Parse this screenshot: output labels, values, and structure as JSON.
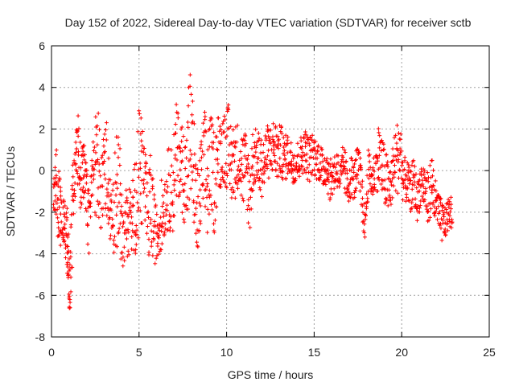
{
  "chart_data": {
    "type": "scatter",
    "title": "Day 152 of 2022, Sidereal Day-to-day VTEC variation (SDTVAR) for receiver sctb",
    "xlabel": "GPS time / hours",
    "ylabel": "SDTVAR / TECUs",
    "xlim": [
      0,
      25
    ],
    "ylim": [
      -8,
      6
    ],
    "x_ticks": [
      "0",
      "5",
      "10",
      "15",
      "20",
      "25"
    ],
    "y_ticks": [
      "-8",
      "-6",
      "-4",
      "-2",
      "0",
      "2",
      "4",
      "6"
    ],
    "grid": true,
    "marker": "+",
    "color": "#ff0000",
    "series": [
      {
        "name": "SDTVAR",
        "profile": [
          [
            0.1,
            -1.0,
            0.8
          ],
          [
            0.25,
            -0.5,
            1.8
          ],
          [
            0.4,
            -1.8,
            2.2
          ],
          [
            0.55,
            -2.5,
            1.5
          ],
          [
            0.7,
            -2.2,
            1.2
          ],
          [
            0.85,
            -3.0,
            1.5
          ],
          [
            0.95,
            -4.5,
            1.6
          ],
          [
            1.05,
            -5.5,
            1.4
          ],
          [
            1.2,
            -2.5,
            2.2
          ],
          [
            1.35,
            0.5,
            2.0
          ],
          [
            1.5,
            1.0,
            2.0
          ],
          [
            1.65,
            -0.5,
            1.6
          ],
          [
            1.8,
            0.5,
            1.5
          ],
          [
            1.95,
            -0.8,
            1.4
          ],
          [
            2.1,
            -2.5,
            1.8
          ],
          [
            2.3,
            -0.8,
            1.2
          ],
          [
            2.5,
            0.3,
            2.6
          ],
          [
            2.7,
            0.0,
            2.8
          ],
          [
            2.9,
            -0.8,
            2.2
          ],
          [
            3.1,
            0.5,
            2.2
          ],
          [
            3.3,
            -0.5,
            2.6
          ],
          [
            3.5,
            -2.5,
            2.0
          ],
          [
            3.7,
            -1.0,
            3.0
          ],
          [
            3.9,
            -1.5,
            2.6
          ],
          [
            4.1,
            -3.0,
            1.8
          ],
          [
            4.3,
            -2.5,
            1.8
          ],
          [
            4.5,
            -2.5,
            2.0
          ],
          [
            4.7,
            -2.0,
            2.0
          ],
          [
            4.9,
            -1.0,
            3.0
          ],
          [
            5.1,
            0.5,
            3.2
          ],
          [
            5.3,
            -0.5,
            2.4
          ],
          [
            5.5,
            -2.5,
            2.0
          ],
          [
            5.7,
            -1.5,
            2.8
          ],
          [
            5.9,
            -3.0,
            1.5
          ],
          [
            6.1,
            -3.0,
            1.4
          ],
          [
            6.3,
            -2.0,
            1.6
          ],
          [
            6.5,
            -1.5,
            1.6
          ],
          [
            6.7,
            -0.8,
            2.0
          ],
          [
            6.9,
            -1.0,
            2.2
          ],
          [
            7.1,
            0.5,
            2.8
          ],
          [
            7.3,
            0.8,
            2.0
          ],
          [
            7.5,
            0.0,
            2.2
          ],
          [
            7.7,
            -0.5,
            2.4
          ],
          [
            7.9,
            1.5,
            3.8
          ],
          [
            8.1,
            0.5,
            2.6
          ],
          [
            8.3,
            -2.5,
            2.4
          ],
          [
            8.5,
            -1.0,
            2.2
          ],
          [
            8.7,
            0.5,
            2.6
          ],
          [
            8.9,
            -0.8,
            2.8
          ],
          [
            9.1,
            0.5,
            2.2
          ],
          [
            9.3,
            -0.5,
            2.6
          ],
          [
            9.5,
            0.8,
            2.0
          ],
          [
            9.7,
            1.0,
            1.8
          ],
          [
            9.9,
            1.2,
            1.8
          ],
          [
            10.1,
            1.0,
            2.2
          ],
          [
            10.3,
            0.3,
            2.0
          ],
          [
            10.5,
            0.5,
            1.8
          ],
          [
            10.7,
            0.8,
            1.6
          ],
          [
            10.9,
            0.0,
            2.0
          ],
          [
            11.1,
            0.2,
            1.8
          ],
          [
            11.3,
            -1.2,
            2.2
          ],
          [
            11.5,
            0.5,
            1.6
          ],
          [
            11.7,
            0.8,
            1.2
          ],
          [
            11.9,
            0.3,
            1.6
          ],
          [
            12.1,
            0.2,
            1.5
          ],
          [
            12.3,
            0.8,
            1.4
          ],
          [
            12.5,
            1.0,
            1.2
          ],
          [
            12.7,
            1.2,
            1.4
          ],
          [
            12.9,
            0.8,
            1.4
          ],
          [
            13.1,
            1.0,
            1.2
          ],
          [
            13.3,
            0.5,
            1.2
          ],
          [
            13.5,
            0.8,
            1.0
          ],
          [
            13.7,
            0.5,
            1.0
          ],
          [
            13.9,
            0.3,
            1.0
          ],
          [
            14.1,
            0.5,
            1.0
          ],
          [
            14.3,
            0.8,
            1.0
          ],
          [
            14.5,
            1.0,
            1.0
          ],
          [
            14.7,
            0.5,
            1.2
          ],
          [
            14.9,
            0.8,
            1.0
          ],
          [
            15.1,
            0.6,
            1.0
          ],
          [
            15.3,
            0.5,
            1.0
          ],
          [
            15.5,
            0.0,
            1.0
          ],
          [
            15.7,
            0.3,
            1.0
          ],
          [
            15.9,
            -0.5,
            1.0
          ],
          [
            16.1,
            -0.2,
            1.0
          ],
          [
            16.3,
            0.2,
            1.0
          ],
          [
            16.5,
            -0.5,
            1.0
          ],
          [
            16.7,
            0.2,
            1.2
          ],
          [
            16.9,
            -0.8,
            1.0
          ],
          [
            17.1,
            -0.2,
            1.0
          ],
          [
            17.3,
            -0.5,
            1.0
          ],
          [
            17.5,
            0.3,
            1.0
          ],
          [
            17.7,
            -0.8,
            1.2
          ],
          [
            17.9,
            -2.8,
            0.8
          ],
          [
            18.1,
            0.0,
            1.0
          ],
          [
            18.3,
            -0.5,
            1.0
          ],
          [
            18.5,
            0.0,
            1.0
          ],
          [
            18.7,
            0.8,
            1.8
          ],
          [
            18.9,
            0.0,
            1.6
          ],
          [
            19.1,
            -0.5,
            1.5
          ],
          [
            19.3,
            -1.0,
            1.4
          ],
          [
            19.5,
            0.0,
            1.4
          ],
          [
            19.7,
            0.5,
            1.8
          ],
          [
            19.9,
            1.0,
            1.8
          ],
          [
            20.1,
            -0.5,
            1.2
          ],
          [
            20.3,
            -0.5,
            1.0
          ],
          [
            20.5,
            -1.0,
            1.0
          ],
          [
            20.7,
            -0.5,
            1.2
          ],
          [
            20.9,
            -1.5,
            1.0
          ],
          [
            21.1,
            -0.5,
            1.0
          ],
          [
            21.3,
            -0.8,
            1.2
          ],
          [
            21.5,
            -1.5,
            1.4
          ],
          [
            21.7,
            -0.5,
            1.4
          ],
          [
            21.9,
            -1.5,
            1.2
          ],
          [
            22.1,
            -2.0,
            1.0
          ],
          [
            22.3,
            -2.5,
            1.0
          ],
          [
            22.5,
            -2.5,
            0.8
          ],
          [
            22.7,
            -2.0,
            0.8
          ]
        ]
      }
    ]
  }
}
